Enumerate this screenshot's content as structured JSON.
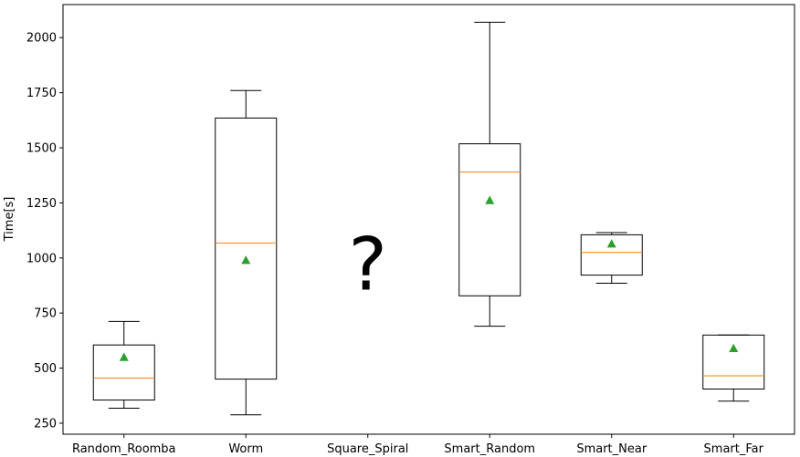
{
  "chart_data": {
    "type": "box",
    "title": "",
    "xlabel": "",
    "ylabel": "Time[s]",
    "ylim": [
      200,
      2150
    ],
    "yticks": [
      250,
      500,
      750,
      1000,
      1250,
      1500,
      1750,
      2000
    ],
    "categories": [
      "Random_Roomba",
      "Worm",
      "Square_Spiral",
      "Smart_Random",
      "Smart_Near",
      "Smart_Far"
    ],
    "boxes": [
      {
        "name": "Random_Roomba",
        "whisker_low": 318,
        "q1": 355,
        "median": 455,
        "q3": 605,
        "whisker_high": 712,
        "mean": 550
      },
      {
        "name": "Worm",
        "whisker_low": 288,
        "q1": 450,
        "median": 1068,
        "q3": 1635,
        "whisker_high": 1760,
        "mean": 990
      },
      {
        "name": "Square_Spiral",
        "missing": true
      },
      {
        "name": "Smart_Random",
        "whisker_low": 690,
        "q1": 828,
        "median": 1390,
        "q3": 1518,
        "whisker_high": 2070,
        "mean": 1262
      },
      {
        "name": "Smart_Near",
        "whisker_low": 885,
        "q1": 922,
        "median": 1025,
        "q3": 1105,
        "whisker_high": 1115,
        "mean": 1065
      },
      {
        "name": "Smart_Far",
        "whisker_low": 350,
        "q1": 405,
        "median": 465,
        "q3": 650,
        "whisker_high": 650,
        "mean": 590
      }
    ],
    "annotations": [
      {
        "category": "Square_Spiral",
        "text": "?",
        "y": 980
      }
    ],
    "colors": {
      "box": "#000000",
      "median": "#ff7f0e",
      "mean": "#2ca02c",
      "axes": "#000000"
    }
  }
}
